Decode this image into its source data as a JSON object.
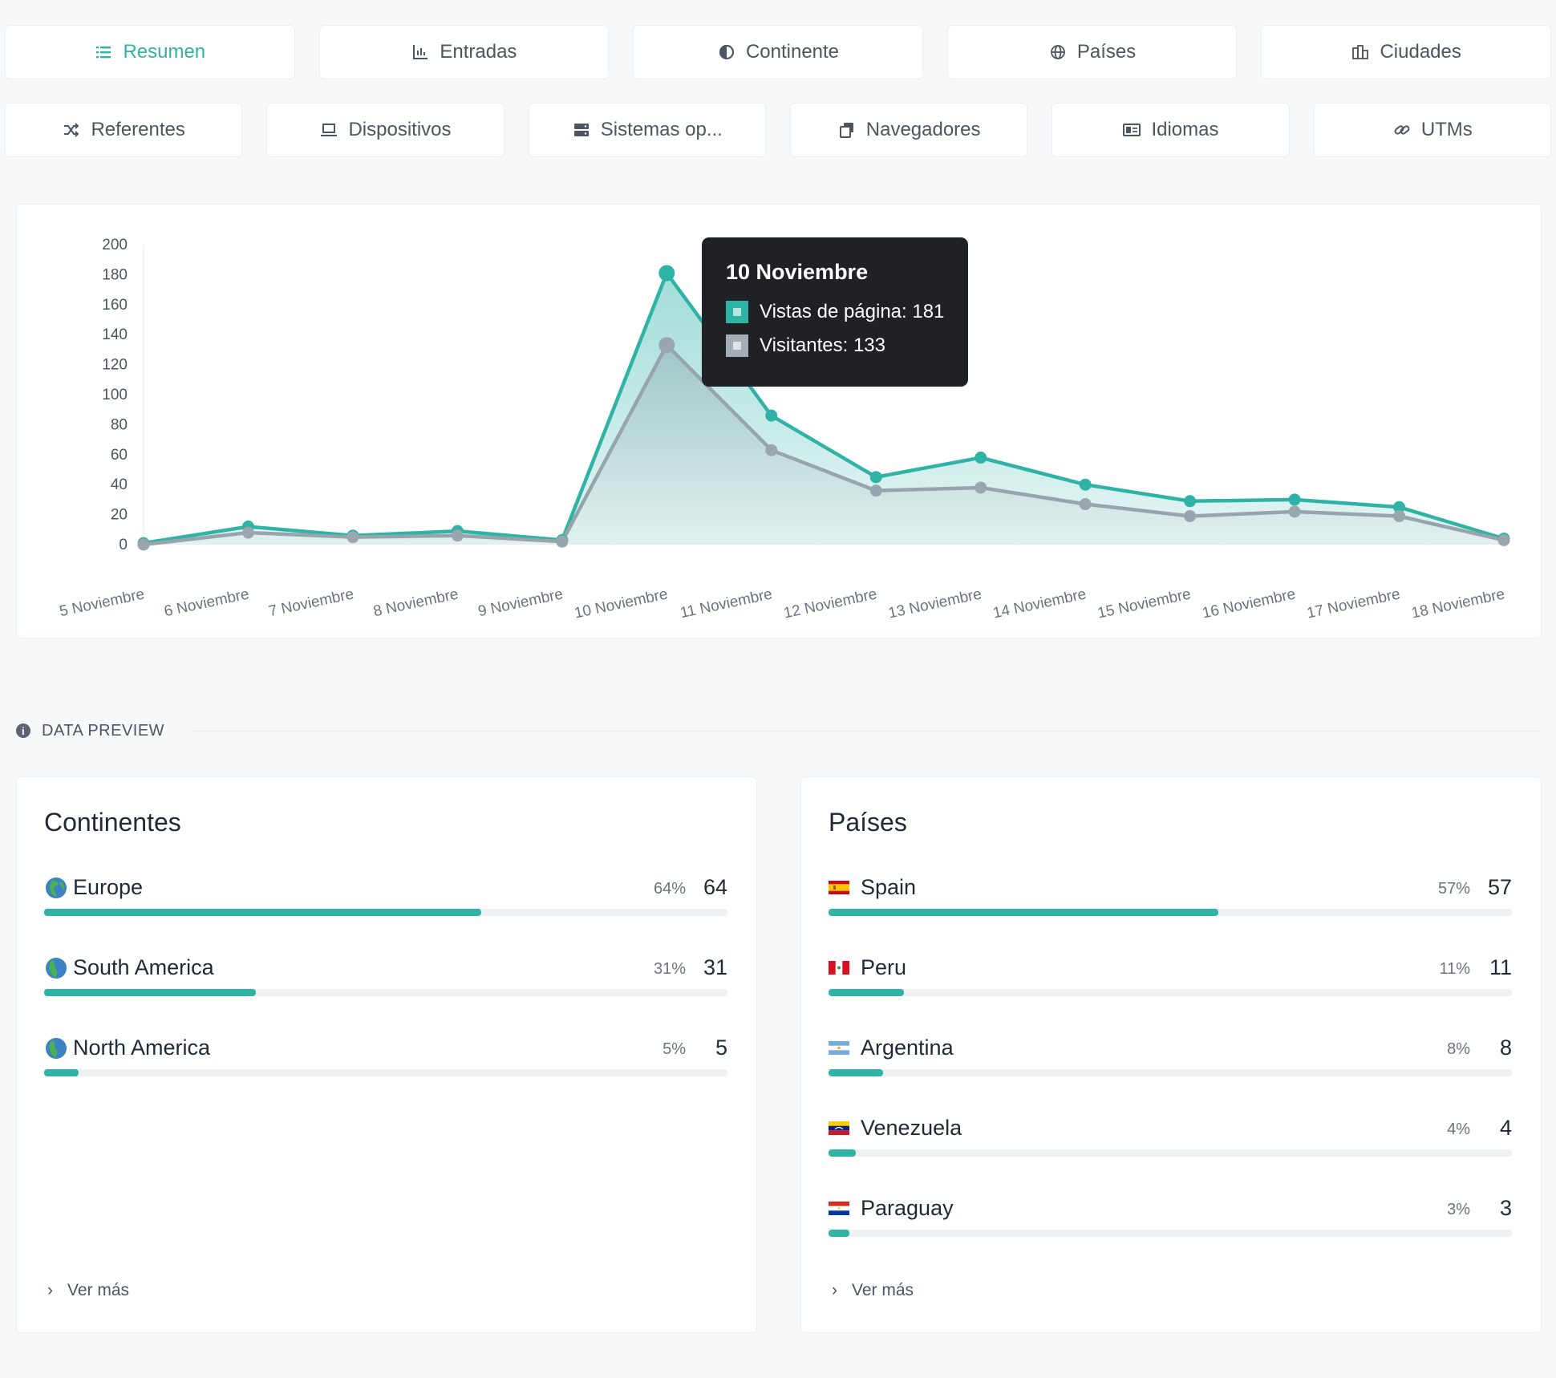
{
  "tabs_row1": [
    {
      "label": "Resumen",
      "icon": "list-icon",
      "active": true
    },
    {
      "label": "Entradas",
      "icon": "bar-chart-icon",
      "active": false
    },
    {
      "label": "Continente",
      "icon": "globe-half-icon",
      "active": false
    },
    {
      "label": "Países",
      "icon": "globe-icon",
      "active": false
    },
    {
      "label": "Ciudades",
      "icon": "city-icon",
      "active": false
    }
  ],
  "tabs_row2": [
    {
      "label": "Referentes",
      "icon": "shuffle-icon"
    },
    {
      "label": "Dispositivos",
      "icon": "laptop-icon"
    },
    {
      "label": "Sistemas op...",
      "icon": "server-icon"
    },
    {
      "label": "Navegadores",
      "icon": "browser-icon"
    },
    {
      "label": "Idiomas",
      "icon": "language-icon"
    },
    {
      "label": "UTMs",
      "icon": "link-icon"
    }
  ],
  "colors": {
    "accent": "#2fb3a6",
    "secondary": "#a3adb4"
  },
  "chart_data": {
    "type": "area",
    "x": [
      "5 Noviembre",
      "6 Noviembre",
      "7 Noviembre",
      "8 Noviembre",
      "9 Noviembre",
      "10 Noviembre",
      "11 Noviembre",
      "12 Noviembre",
      "13 Noviembre",
      "14 Noviembre",
      "15 Noviembre",
      "16 Noviembre",
      "17 Noviembre",
      "18 Noviembre"
    ],
    "series": [
      {
        "name": "Vistas de página",
        "color": "#2fb3a6",
        "values": [
          1,
          12,
          6,
          9,
          3,
          181,
          86,
          45,
          58,
          40,
          29,
          30,
          25,
          4
        ]
      },
      {
        "name": "Visitantes",
        "color": "#a3adb4",
        "values": [
          0,
          8,
          5,
          6,
          2,
          133,
          63,
          36,
          38,
          27,
          19,
          22,
          19,
          3
        ]
      }
    ],
    "yticks": [
      0,
      20,
      40,
      60,
      80,
      100,
      120,
      140,
      160,
      180,
      200
    ],
    "ylim": [
      0,
      200
    ],
    "grid": false
  },
  "tooltip": {
    "title": "10 Noviembre",
    "rows": [
      {
        "text": "Vistas de página: 181",
        "color": "#2fb3a6"
      },
      {
        "text": "Visitantes: 133",
        "color": "#a3adb4"
      }
    ]
  },
  "section_label": "DATA PREVIEW",
  "continentes": {
    "title": "Continentes",
    "items": [
      {
        "name": "Europe",
        "pct": "64%",
        "count": "64",
        "fraction": 0.64,
        "icon": "globe-europe-icon"
      },
      {
        "name": "South America",
        "pct": "31%",
        "count": "31",
        "fraction": 0.31,
        "icon": "globe-americas-icon"
      },
      {
        "name": "North America",
        "pct": "5%",
        "count": "5",
        "fraction": 0.05,
        "icon": "globe-americas-icon"
      }
    ],
    "more": "Ver más"
  },
  "paises": {
    "title": "Países",
    "items": [
      {
        "name": "Spain",
        "pct": "57%",
        "count": "57",
        "fraction": 0.57,
        "icon": "flag-spain-icon"
      },
      {
        "name": "Peru",
        "pct": "11%",
        "count": "11",
        "fraction": 0.11,
        "icon": "flag-peru-icon"
      },
      {
        "name": "Argentina",
        "pct": "8%",
        "count": "8",
        "fraction": 0.08,
        "icon": "flag-argentina-icon"
      },
      {
        "name": "Venezuela",
        "pct": "4%",
        "count": "4",
        "fraction": 0.04,
        "icon": "flag-venezuela-icon"
      },
      {
        "name": "Paraguay",
        "pct": "3%",
        "count": "3",
        "fraction": 0.03,
        "icon": "flag-paraguay-icon"
      }
    ],
    "more": "Ver más"
  }
}
